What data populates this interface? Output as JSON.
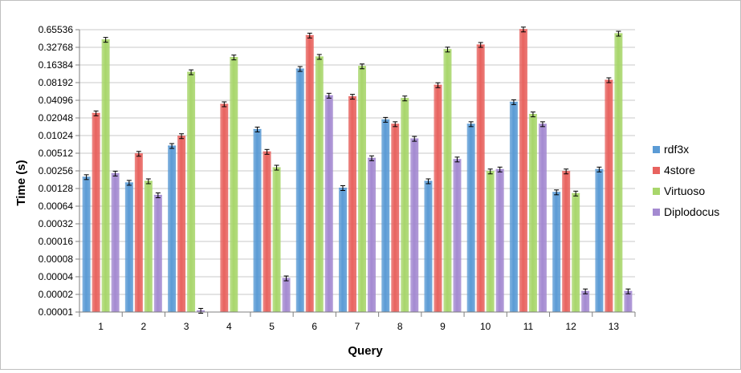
{
  "chart_data": {
    "type": "bar",
    "title": "",
    "xlabel": "Query",
    "ylabel": "Time (s)",
    "y_scale": "log2",
    "ylim": [
      1e-05,
      0.65536
    ],
    "y_ticks": [
      "0.00001",
      "0.00002",
      "0.00004",
      "0.00008",
      "0.00016",
      "0.00032",
      "0.00064",
      "0.00128",
      "0.00256",
      "0.00512",
      "0.01024",
      "0.02048",
      "0.04096",
      "0.08192",
      "0.16384",
      "0.32768",
      "0.65536"
    ],
    "categories": [
      "1",
      "2",
      "3",
      "4",
      "5",
      "6",
      "7",
      "8",
      "9",
      "10",
      "11",
      "12",
      "13"
    ],
    "grid": true,
    "legend_position": "right",
    "series": [
      {
        "name": "rdf3x",
        "color": "#5b9bd5",
        "values": [
          0.002,
          0.0016,
          0.0068,
          null,
          0.013,
          0.14,
          0.0013,
          0.019,
          0.0017,
          0.016,
          0.038,
          0.0011,
          0.0027
        ]
      },
      {
        "name": "4store",
        "color": "#e8635f",
        "values": [
          0.0245,
          0.005,
          0.01,
          0.035,
          0.0054,
          0.52,
          0.047,
          0.016,
          0.074,
          0.36,
          0.66,
          0.0025,
          0.09
        ]
      },
      {
        "name": "Virtuoso",
        "color": "#a8d66b",
        "values": [
          0.44,
          0.0017,
          0.123,
          0.22,
          0.0029,
          0.225,
          0.155,
          0.044,
          0.3,
          0.0025,
          0.0235,
          0.00105,
          0.56
        ]
      },
      {
        "name": "Diplodocus",
        "color": "#a48ad1",
        "values": [
          0.0023,
          0.00098,
          1.05e-05,
          null,
          3.75e-05,
          0.049,
          0.0042,
          0.009,
          0.004,
          0.0027,
          0.016,
          2.25e-05,
          2.25e-05
        ]
      }
    ],
    "error_bars": true
  }
}
